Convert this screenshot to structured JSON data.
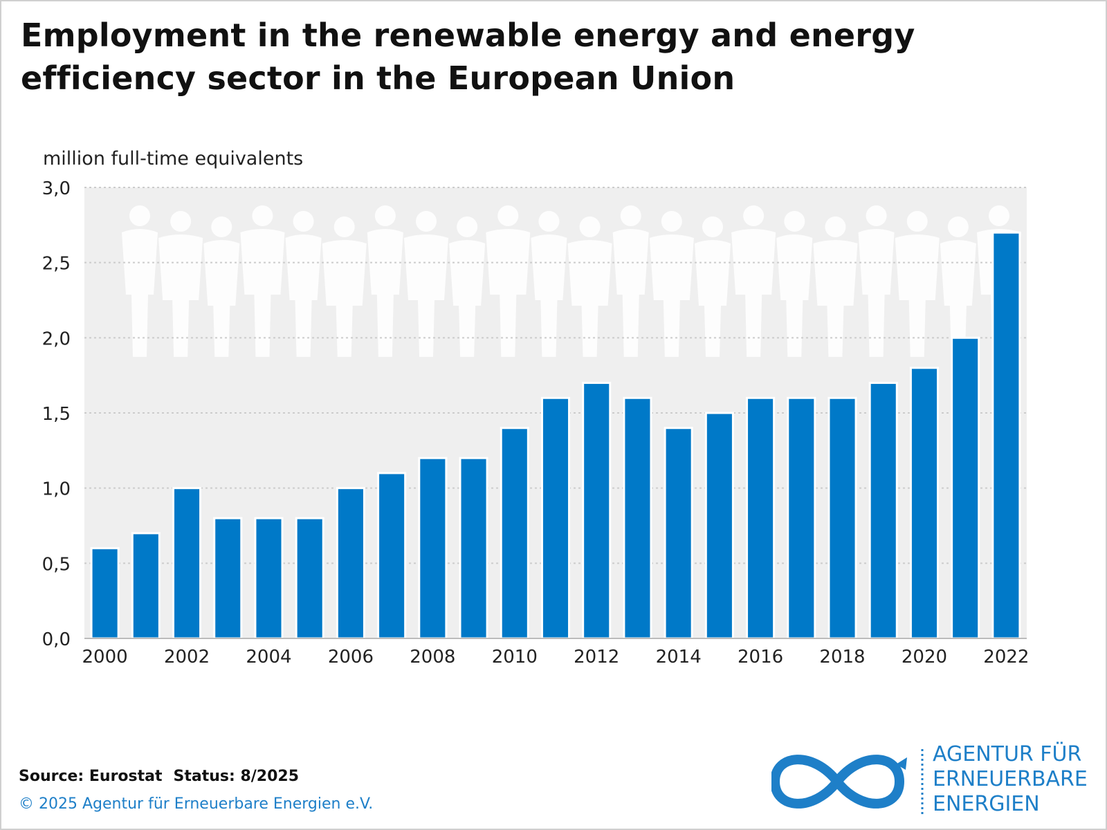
{
  "title": "Employment in the renewable energy and energy efficiency sector in the European Union",
  "ylabel": "million full-time equivalents",
  "footer": {
    "source": "Source: Eurostat",
    "status": "Status: 8/2025",
    "copyright": "© 2025 Agentur für Erneuerbare Energien e.V."
  },
  "logo": {
    "line1": "AGENTUR FÜR",
    "line2": "ERNEUERBARE",
    "line3": "ENERGIEN"
  },
  "colors": {
    "bar": "#0079c8",
    "plot_bg": "#efefef",
    "grid": "#cccccc",
    "accent": "#1e7fc8"
  },
  "chart_data": {
    "type": "bar",
    "categories": [
      "2000",
      "2001",
      "2002",
      "2003",
      "2004",
      "2005",
      "2006",
      "2007",
      "2008",
      "2009",
      "2010",
      "2011",
      "2012",
      "2013",
      "2014",
      "2015",
      "2016",
      "2017",
      "2018",
      "2019",
      "2020",
      "2021",
      "2022"
    ],
    "values": [
      0.6,
      0.7,
      1.0,
      0.8,
      0.8,
      0.8,
      1.0,
      1.1,
      1.2,
      1.2,
      1.4,
      1.6,
      1.7,
      1.6,
      1.4,
      1.5,
      1.6,
      1.6,
      1.6,
      1.7,
      1.8,
      2.0,
      2.7
    ],
    "x_tick_labels": [
      "2000",
      "2002",
      "2004",
      "2006",
      "2008",
      "2010",
      "2012",
      "2014",
      "2016",
      "2018",
      "2020",
      "2022"
    ],
    "y_ticks": [
      "0,0",
      "0,5",
      "1,0",
      "1,5",
      "2,0",
      "2,5",
      "3,0"
    ],
    "y_tick_values": [
      0,
      0.5,
      1.0,
      1.5,
      2.0,
      2.5,
      3.0
    ],
    "ylim": [
      0,
      3.0
    ],
    "ylabel": "million full-time equivalents",
    "grid": true
  }
}
